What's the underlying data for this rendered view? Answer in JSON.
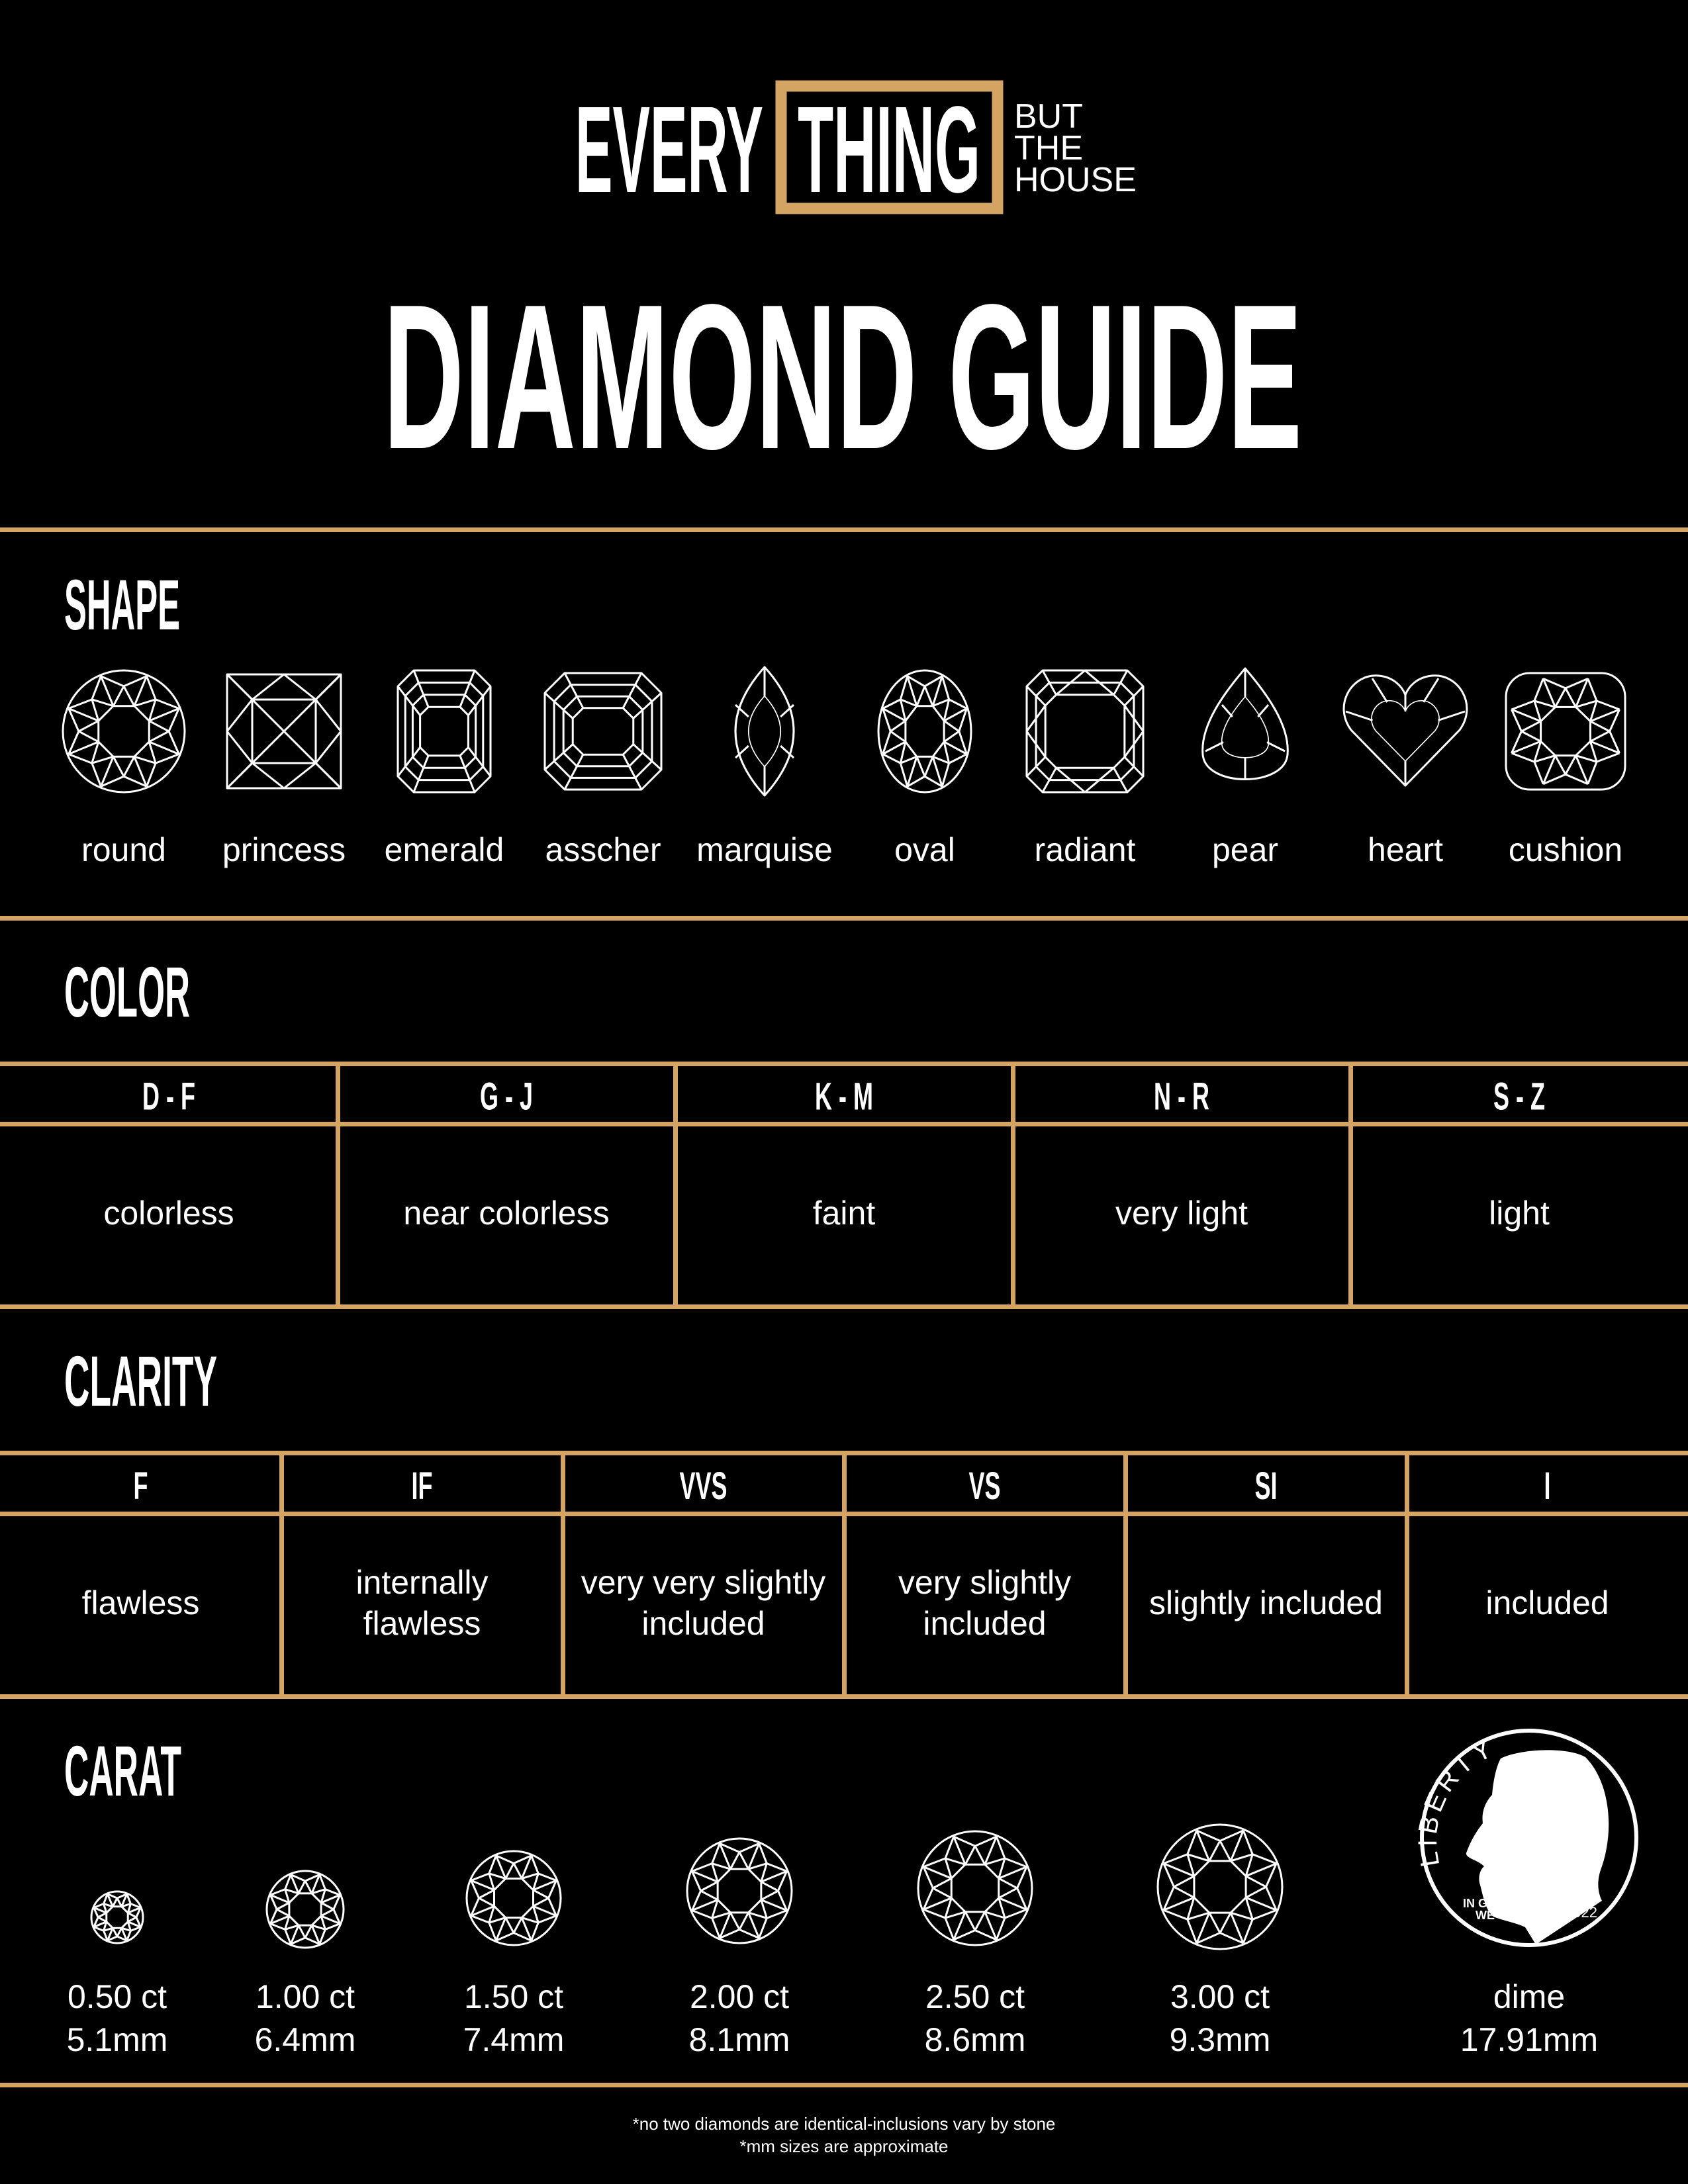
{
  "logo": {
    "every": "EVERY",
    "thing": "THING",
    "but": "BUT",
    "the": "THE",
    "house": "HOUSE"
  },
  "title": "DIAMOND GUIDE",
  "colors": {
    "background": "#000000",
    "accent_gold": "#D4A463",
    "text": "#FFFFFF"
  },
  "shape": {
    "label": "SHAPE",
    "items": [
      {
        "name": "round",
        "icon": "round-diamond-icon"
      },
      {
        "name": "princess",
        "icon": "princess-diamond-icon"
      },
      {
        "name": "emerald",
        "icon": "emerald-diamond-icon"
      },
      {
        "name": "asscher",
        "icon": "asscher-diamond-icon"
      },
      {
        "name": "marquise",
        "icon": "marquise-diamond-icon"
      },
      {
        "name": "oval",
        "icon": "oval-diamond-icon"
      },
      {
        "name": "radiant",
        "icon": "radiant-diamond-icon"
      },
      {
        "name": "pear",
        "icon": "pear-diamond-icon"
      },
      {
        "name": "heart",
        "icon": "heart-diamond-icon"
      },
      {
        "name": "cushion",
        "icon": "cushion-diamond-icon"
      }
    ]
  },
  "color": {
    "label": "COLOR",
    "grades": [
      {
        "range": "D - F",
        "desc": "colorless"
      },
      {
        "range": "G - J",
        "desc": "near colorless"
      },
      {
        "range": "K - M",
        "desc": "faint"
      },
      {
        "range": "N - R",
        "desc": "very light"
      },
      {
        "range": "S - Z",
        "desc": "light"
      }
    ]
  },
  "clarity": {
    "label": "CLARITY",
    "grades": [
      {
        "code": "F",
        "desc": "flawless"
      },
      {
        "code": "IF",
        "desc": "internally\nflawless"
      },
      {
        "code": "VVS",
        "desc": "very very slightly\nincluded"
      },
      {
        "code": "VS",
        "desc": "very slightly\nincluded"
      },
      {
        "code": "SI",
        "desc": "slightly included"
      },
      {
        "code": "I",
        "desc": "included"
      }
    ]
  },
  "carat": {
    "label": "CARAT",
    "items": [
      {
        "weight": "0.50 ct",
        "size": "5.1mm"
      },
      {
        "weight": "1.00 ct",
        "size": "6.4mm"
      },
      {
        "weight": "1.50 ct",
        "size": "7.4mm"
      },
      {
        "weight": "2.00 ct",
        "size": "8.1mm"
      },
      {
        "weight": "2.50 ct",
        "size": "8.6mm"
      },
      {
        "weight": "3.00 ct",
        "size": "9.3mm"
      }
    ],
    "dime": {
      "label": "dime",
      "size": "17.91mm",
      "liberty": "LIBERTY",
      "motto_1": "IN GOD",
      "motto_2": "WE TRUST",
      "year": "2022"
    }
  },
  "footer": {
    "note_1": "*no two diamonds are identical-inclusions vary by stone",
    "note_2": "*mm sizes are approximate"
  }
}
